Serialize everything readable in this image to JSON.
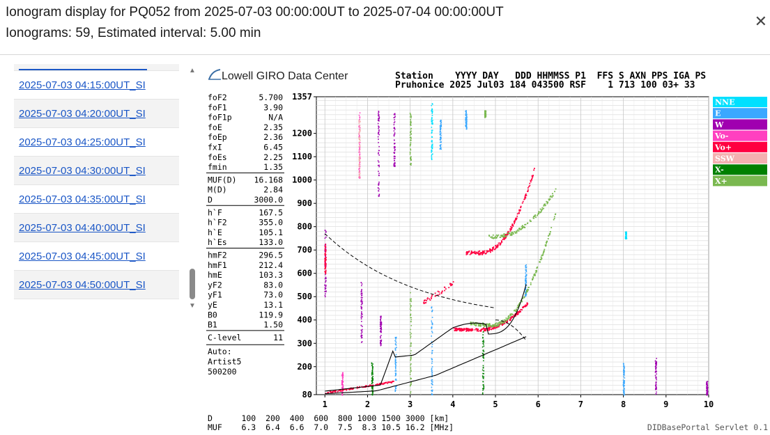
{
  "header": {
    "title": "Ionogram display for PQ052 from 2025-07-03 00:00:00UT to 2025-07-04 00:00:00UT",
    "subtitle": "Ionograms: 59, Estimated interval: 5.00 min",
    "close_icon": "close-icon"
  },
  "list": {
    "items": [
      {
        "label": "2025-07-03 04:15:00UT_SI"
      },
      {
        "label": "2025-07-03 04:20:00UT_SI"
      },
      {
        "label": "2025-07-03 04:25:00UT_SI"
      },
      {
        "label": "2025-07-03 04:30:00UT_SI"
      },
      {
        "label": "2025-07-03 04:35:00UT_SI"
      },
      {
        "label": "2025-07-03 04:40:00UT_SI"
      },
      {
        "label": "2025-07-03 04:45:00UT_SI"
      },
      {
        "label": "2025-07-03 04:50:00UT_SI"
      }
    ],
    "scroll_up_icon": "triangle-up-icon",
    "scroll_down_icon": "triangle-down-icon"
  },
  "ionogram": {
    "logo_text": "Lowell GIRO Data Center",
    "station_header": "Station    YYYY DAY   DDD HHMMSS P1  FFS S AXN PPS IGA PS",
    "station_values": "Pruhonice 2025 Jul03 184 043500 RSF    1 713 100 03+ 33",
    "params": [
      {
        "group": 1,
        "rows": [
          {
            "name": "foF2",
            "value": "5.700"
          },
          {
            "name": "foF1",
            "value": "3.90"
          },
          {
            "name": "foF1p",
            "value": "N/A"
          },
          {
            "name": "foE",
            "value": "2.35"
          },
          {
            "name": "foEp",
            "value": "2.36"
          },
          {
            "name": "fxI",
            "value": "6.45"
          },
          {
            "name": "foEs",
            "value": "2.25"
          },
          {
            "name": "fmin",
            "value": "1.35"
          }
        ]
      },
      {
        "group": 2,
        "rows": [
          {
            "name": "MUF(D)",
            "value": "16.168"
          },
          {
            "name": "M(D)",
            "value": "2.84"
          },
          {
            "name": "D",
            "value": "3000.0"
          }
        ]
      },
      {
        "group": 3,
        "rows": [
          {
            "name": "h`F",
            "value": "167.5"
          },
          {
            "name": "h`F2",
            "value": "355.0"
          },
          {
            "name": "h`E",
            "value": "105.1"
          },
          {
            "name": "h`Es",
            "value": "133.0"
          }
        ]
      },
      {
        "group": 4,
        "rows": [
          {
            "name": "hmF2",
            "value": "296.5"
          },
          {
            "name": "hmF1",
            "value": "212.4"
          },
          {
            "name": "hmE",
            "value": "103.3"
          },
          {
            "name": "yF2",
            "value": "83.0"
          },
          {
            "name": "yF1",
            "value": "73.0"
          },
          {
            "name": "yE",
            "value": "13.1"
          },
          {
            "name": "B0",
            "value": "119.9"
          },
          {
            "name": "B1",
            "value": "1.50"
          }
        ]
      },
      {
        "group": 5,
        "rows": [
          {
            "name": "C-level",
            "value": "11"
          }
        ]
      }
    ],
    "autoscaler": [
      "Auto:",
      "Artist5",
      "500200"
    ],
    "muf_table": {
      "d_row": "D      100  200  400  600  800 1000 1500 3000 [km]",
      "muf_row": "MUF    6.3  6.4  6.6  7.0  7.5  8.3 10.5 16.2 [MHz]"
    },
    "footer": "DIDBasePortal Servlet 0.1",
    "y_axis_ticks": [
      "1357",
      "1200",
      "1100",
      "1000",
      "900",
      "800",
      "700",
      "600",
      "500",
      "400",
      "300",
      "200",
      "80"
    ],
    "x_axis_ticks": [
      "1",
      "2",
      "3",
      "4",
      "5",
      "6",
      "7",
      "8",
      "9",
      "10"
    ],
    "legend": [
      {
        "label": "NNE",
        "color": "#00e0ff"
      },
      {
        "label": "E",
        "color": "#3aa8ff"
      },
      {
        "label": "W",
        "color": "#a000b0"
      },
      {
        "label": "Vo-",
        "color": "#ff40c0"
      },
      {
        "label": "Vo+",
        "color": "#ff0040"
      },
      {
        "label": "SSW",
        "color": "#f4b0b0"
      },
      {
        "label": "X-",
        "color": "#008000"
      },
      {
        "label": "X+",
        "color": "#7ab850"
      }
    ]
  }
}
